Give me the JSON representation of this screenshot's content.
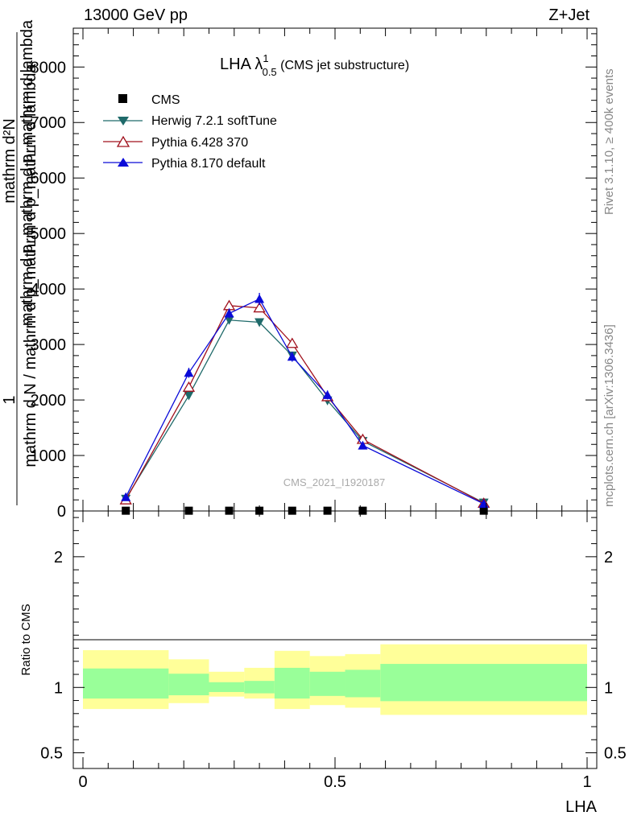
{
  "header": {
    "left": "13000 GeV pp",
    "right": "Z+Jet"
  },
  "side_labels": {
    "rivet": "Rivet 3.1.10, ≥ 400k events",
    "mcplots": "mcplots.cern.ch [arXiv:1306.3436]"
  },
  "colors": {
    "cms": "#000000",
    "herwig": "#1f6a6a",
    "pythia6": "#a0101c",
    "pythia8": "#0a0ad8",
    "band_inner": "#99ff99",
    "band_outer": "#ffff99"
  },
  "chart_data": [
    {
      "type": "line",
      "panel": "main",
      "title_main": "LHA λ",
      "title_sup": "1",
      "title_sub": "0.5",
      "title_rest": " (CMS jet substructure)",
      "xlabel": "LHA",
      "ylabel_num": "1",
      "ylabel_den": "mathrm d N / mathrm d p_mathrm d p_mathrm d lambda",
      "ylabel_num_frac": "mathrm d²N",
      "ylabel_den_frac": "mathrm d p_mathrm d p_mathrm d lambda",
      "xlim": [
        0,
        1
      ],
      "ylim": [
        0,
        8700
      ],
      "yticks": [
        {
          "value": 0,
          "label": "0"
        },
        {
          "value": 1000,
          "label": "1000"
        },
        {
          "value": 2000,
          "label": "2000"
        },
        {
          "value": 3000,
          "label": "3000"
        },
        {
          "value": 4000,
          "label": "4000"
        },
        {
          "value": 5000,
          "label": "5000"
        },
        {
          "value": 6000,
          "label": "6000"
        },
        {
          "value": 7000,
          "label": "7000"
        },
        {
          "value": 8000,
          "label": "8000"
        }
      ],
      "watermark": "CMS_2021_I1920187",
      "series": [
        {
          "name": "CMS",
          "key": "cms",
          "marker": "square",
          "x": [
            0.085,
            0.21,
            0.29,
            0.35,
            0.415,
            0.485,
            0.555,
            0.795
          ],
          "y": [
            5,
            5,
            5,
            5,
            5,
            5,
            5,
            5
          ]
        },
        {
          "name": "Herwig 7.2.1 softTune",
          "key": "herwig",
          "marker": "triangle-down",
          "x": [
            0.085,
            0.21,
            0.29,
            0.35,
            0.415,
            0.485,
            0.555,
            0.795
          ],
          "y": [
            220,
            2080,
            3440,
            3400,
            2800,
            1990,
            1260,
            150
          ]
        },
        {
          "name": "Pythia 6.428 370",
          "key": "pythia6",
          "marker": "triangle-open",
          "x": [
            0.085,
            0.21,
            0.29,
            0.35,
            0.415,
            0.485,
            0.555,
            0.795
          ],
          "y": [
            200,
            2230,
            3700,
            3660,
            3020,
            2060,
            1290,
            140
          ]
        },
        {
          "name": "Pythia 8.170 default",
          "key": "pythia8",
          "marker": "triangle-up",
          "x": [
            0.085,
            0.21,
            0.29,
            0.35,
            0.415,
            0.485,
            0.555,
            0.795
          ],
          "y": [
            250,
            2490,
            3560,
            3820,
            2780,
            2090,
            1180,
            130
          ],
          "err": [
            20,
            90,
            90,
            110,
            90,
            80,
            60,
            15
          ]
        }
      ]
    },
    {
      "type": "area",
      "panel": "ratio",
      "ylabel": "Ratio to CMS",
      "xlabel": "LHA",
      "xlim": [
        0,
        1
      ],
      "ylim": [
        0.38,
        2.35
      ],
      "xticks": [
        {
          "value": 0,
          "label": "0"
        },
        {
          "value": 0.5,
          "label": "0.5"
        },
        {
          "value": 1,
          "label": "1"
        }
      ],
      "yticks": [
        {
          "value": 0.5,
          "label": "0.5"
        },
        {
          "value": 1,
          "label": "1"
        },
        {
          "value": 2,
          "label": "2"
        }
      ],
      "bins": [
        {
          "x0": 0.0,
          "x1": 0.17,
          "inner": [
            0.915,
            1.145
          ],
          "outer": [
            0.835,
            1.285
          ]
        },
        {
          "x0": 0.17,
          "x1": 0.25,
          "inner": [
            0.94,
            1.105
          ],
          "outer": [
            0.88,
            1.215
          ]
        },
        {
          "x0": 0.25,
          "x1": 0.32,
          "inner": [
            0.965,
            1.04
          ],
          "outer": [
            0.93,
            1.12
          ]
        },
        {
          "x0": 0.32,
          "x1": 0.38,
          "inner": [
            0.955,
            1.05
          ],
          "outer": [
            0.915,
            1.15
          ]
        },
        {
          "x0": 0.38,
          "x1": 0.45,
          "inner": [
            0.915,
            1.15
          ],
          "outer": [
            0.835,
            1.28
          ]
        },
        {
          "x0": 0.45,
          "x1": 0.52,
          "inner": [
            0.935,
            1.12
          ],
          "outer": [
            0.865,
            1.24
          ]
        },
        {
          "x0": 0.52,
          "x1": 0.59,
          "inner": [
            0.925,
            1.135
          ],
          "outer": [
            0.845,
            1.255
          ]
        },
        {
          "x0": 0.59,
          "x1": 1.0,
          "inner": [
            0.895,
            1.18
          ],
          "outer": [
            0.79,
            1.33
          ]
        }
      ]
    }
  ]
}
